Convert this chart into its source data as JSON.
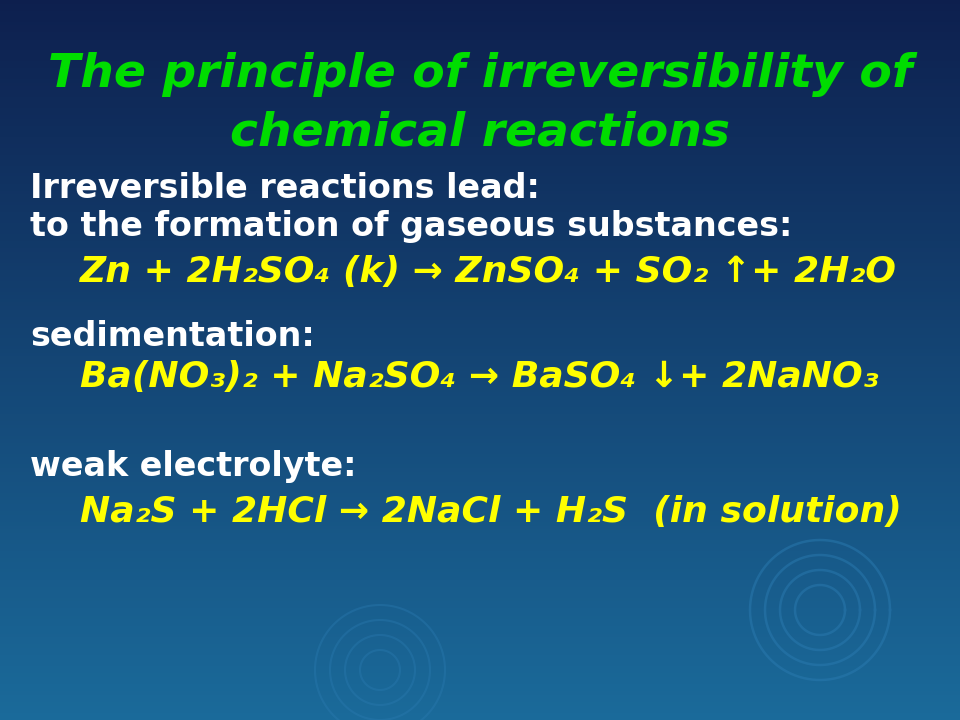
{
  "title_line1": "The principle of irreversibility of",
  "title_line2": "chemical reactions",
  "title_color": "#00dd00",
  "bg_color_top": "#0d1f4e",
  "bg_color_bottom": "#1a6a9a",
  "white_text_color": "#ffffff",
  "yellow_text_color": "#ffff00",
  "label1": "Irreversible reactions lead:",
  "label2": "to the formation of gaseous substances:",
  "eq1": "Zn + 2H₂SO₄ (k) → ZnSO₄ + SO₂ ↑+ 2H₂O",
  "label3": "sedimentation:",
  "eq2": "Ba(NO₃)₂ + Na₂SO₄ → BaSO₄ ↓+ 2NaNO₃",
  "label4": "weak electrolyte:",
  "eq3": "Na₂S + 2HCl → 2NaCl + H₂S  (in solution)",
  "title_fontsize": 34,
  "label_fontsize": 24,
  "eq_fontsize": 26,
  "fig_width": 9.6,
  "fig_height": 7.2,
  "dpi": 100
}
